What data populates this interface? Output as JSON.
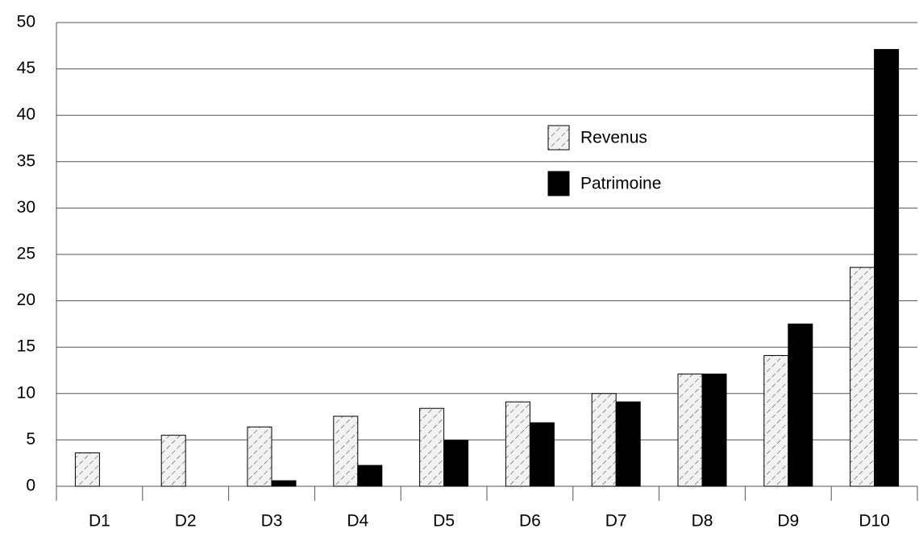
{
  "chart_data": {
    "type": "bar",
    "categories": [
      "D1",
      "D2",
      "D3",
      "D4",
      "D5",
      "D6",
      "D7",
      "D8",
      "D9",
      "D10"
    ],
    "series": [
      {
        "name": "Revenus",
        "color": "#f2f2f2",
        "hatch": true,
        "values": [
          3.6,
          5.5,
          6.4,
          7.55,
          8.4,
          9.1,
          10.0,
          12.1,
          14.1,
          23.6
        ]
      },
      {
        "name": "Patrimoine",
        "color": "#000000",
        "hatch": false,
        "values": [
          0,
          0,
          0.6,
          2.25,
          4.95,
          6.85,
          9.1,
          12.1,
          17.5,
          47.1
        ]
      }
    ],
    "ylim": [
      0,
      50
    ],
    "yticks": [
      0,
      5,
      10,
      15,
      20,
      25,
      30,
      35,
      40,
      45,
      50
    ],
    "grid": true,
    "legend": "upper-center"
  }
}
